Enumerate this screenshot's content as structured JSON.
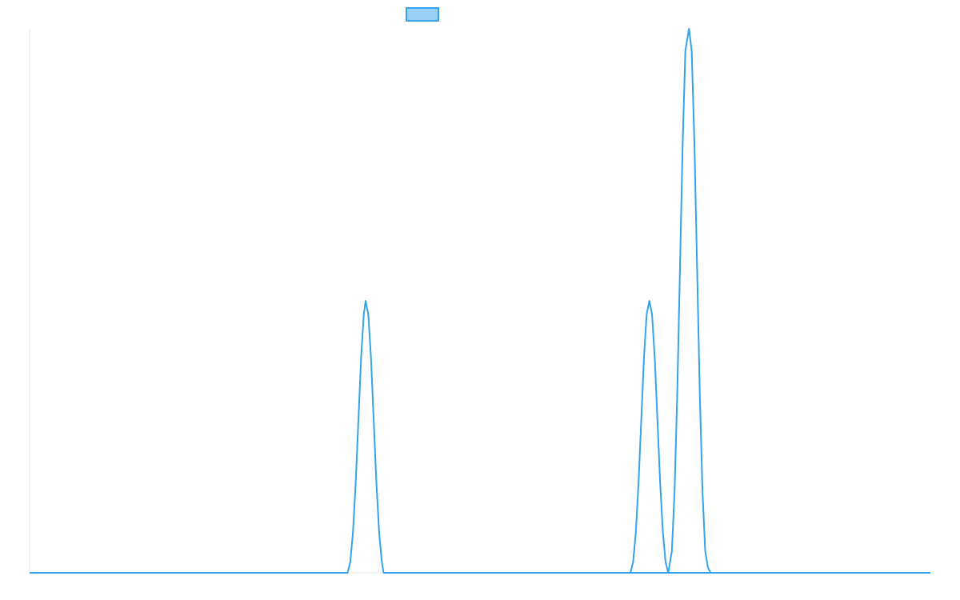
{
  "chart_data": {
    "type": "line",
    "title": "",
    "xlabel": "",
    "ylabel": "",
    "xlim": [
      0,
      100
    ],
    "ylim": [
      0,
      2
    ],
    "grid": false,
    "legend": {
      "position": "top-center",
      "entries": [
        {
          "name": "",
          "color": "#36a2eb",
          "fill": "#9ad0f5"
        }
      ]
    },
    "series": [
      {
        "color": "#36a2eb",
        "x": [
          0,
          35.3,
          35.6,
          35.9,
          36.2,
          36.5,
          36.8,
          37.1,
          37.3,
          37.6,
          37.9,
          38.2,
          38.5,
          38.8,
          39.1,
          39.3,
          100
        ],
        "y": [
          0,
          0,
          0.04,
          0.15,
          0.33,
          0.56,
          0.79,
          0.95,
          1.0,
          0.95,
          0.79,
          0.56,
          0.33,
          0.15,
          0.04,
          0,
          0
        ]
      },
      {
        "color": "#36a2eb",
        "x": [
          66.7,
          67.0,
          67.3,
          67.6,
          67.9,
          68.2,
          68.5,
          68.8,
          69.1,
          69.4,
          69.7,
          70.0,
          70.3,
          70.6,
          70.9,
          71.3,
          71.6,
          71.9,
          72.2,
          72.5,
          72.8,
          73.2,
          73.5,
          73.8,
          74.1,
          74.4,
          74.7,
          75.0,
          75.3,
          75.6,
          75.9
        ],
        "y": [
          0,
          0.04,
          0.15,
          0.33,
          0.56,
          0.79,
          0.95,
          1.0,
          0.95,
          0.79,
          0.56,
          0.33,
          0.15,
          0.04,
          0,
          0.08,
          0.3,
          0.66,
          1.12,
          1.58,
          1.92,
          2.0,
          1.92,
          1.58,
          1.12,
          0.66,
          0.3,
          0.08,
          0.02,
          0,
          0
        ]
      }
    ]
  }
}
